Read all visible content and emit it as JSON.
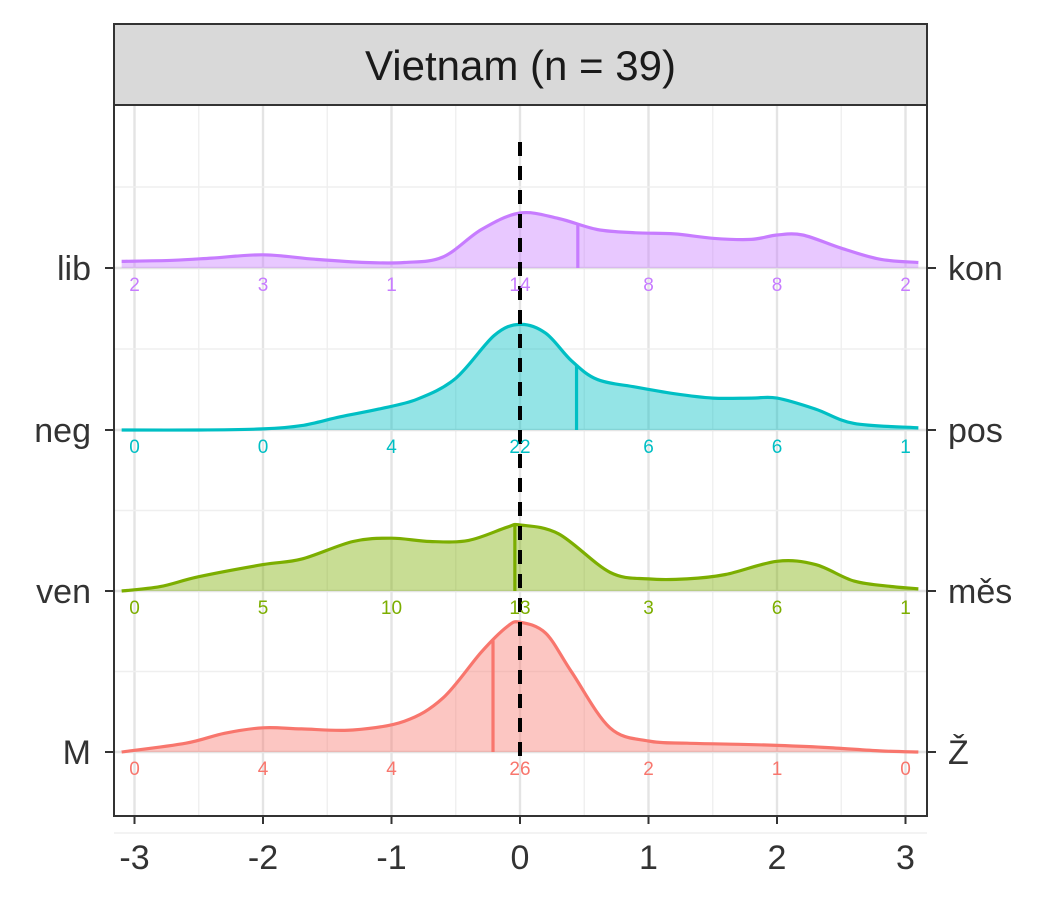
{
  "chart_data": {
    "type": "density-ridgeline",
    "facet_title": "Vietnam (n = 39)",
    "x_ticks": [
      -3,
      -2,
      -1,
      0,
      1,
      2,
      3
    ],
    "x_tick_labels": [
      "-3",
      "-2",
      "-1",
      "0",
      "1",
      "2",
      "3"
    ],
    "xlim": [
      -3.1,
      3.1
    ],
    "reference_line_x": 0,
    "grid": true,
    "rows": [
      {
        "left_label": "lib",
        "right_label": "kon",
        "color": "#C77CFF",
        "mean": 0.45,
        "counts": [
          2,
          3,
          1,
          14,
          8,
          8,
          2
        ],
        "count_labels": [
          "2",
          "3",
          "1",
          "14",
          "8",
          "8",
          "2"
        ],
        "density_x": [
          -3.1,
          -2.7,
          -2.4,
          -2.0,
          -1.6,
          -1.2,
          -0.9,
          -0.6,
          -0.3,
          0.0,
          0.3,
          0.6,
          0.9,
          1.2,
          1.5,
          1.8,
          2.0,
          2.2,
          2.5,
          2.8,
          3.1
        ],
        "density_y": [
          0.06,
          0.07,
          0.09,
          0.12,
          0.08,
          0.05,
          0.05,
          0.1,
          0.35,
          0.5,
          0.45,
          0.35,
          0.32,
          0.31,
          0.27,
          0.26,
          0.3,
          0.3,
          0.18,
          0.08,
          0.05
        ]
      },
      {
        "left_label": "neg",
        "right_label": "pos",
        "color": "#00BFC4",
        "mean": 0.44,
        "counts": [
          0,
          0,
          4,
          22,
          6,
          6,
          1
        ],
        "count_labels": [
          "0",
          "0",
          "4",
          "22",
          "6",
          "6",
          "1"
        ],
        "density_x": [
          -3.1,
          -2.5,
          -2.0,
          -1.7,
          -1.4,
          -1.1,
          -0.8,
          -0.5,
          -0.2,
          0.0,
          0.2,
          0.4,
          0.6,
          0.9,
          1.2,
          1.5,
          1.8,
          2.0,
          2.3,
          2.6,
          3.1
        ],
        "density_y": [
          0.0,
          0.0,
          0.01,
          0.04,
          0.12,
          0.19,
          0.28,
          0.47,
          0.86,
          0.96,
          0.88,
          0.63,
          0.46,
          0.39,
          0.33,
          0.29,
          0.29,
          0.29,
          0.19,
          0.06,
          0.02
        ]
      },
      {
        "left_label": "ven",
        "right_label": "měs",
        "color": "#7CAE00",
        "mean": -0.04,
        "counts": [
          0,
          5,
          10,
          13,
          3,
          6,
          1
        ],
        "count_labels": [
          "0",
          "5",
          "10",
          "13",
          "3",
          "6",
          "1"
        ],
        "density_x": [
          -3.1,
          -2.8,
          -2.5,
          -2.0,
          -1.7,
          -1.3,
          -1.0,
          -0.7,
          -0.4,
          -0.1,
          0.0,
          0.3,
          0.7,
          1.0,
          1.3,
          1.6,
          2.0,
          2.3,
          2.6,
          2.9,
          3.1
        ],
        "density_y": [
          0.0,
          0.04,
          0.13,
          0.24,
          0.29,
          0.45,
          0.48,
          0.45,
          0.46,
          0.58,
          0.6,
          0.52,
          0.17,
          0.11,
          0.11,
          0.15,
          0.27,
          0.24,
          0.09,
          0.04,
          0.02
        ]
      },
      {
        "left_label": "M",
        "right_label": "Ž",
        "color": "#F8766D",
        "mean": -0.21,
        "counts": [
          0,
          4,
          4,
          26,
          2,
          1,
          0
        ],
        "count_labels": [
          "0",
          "4",
          "4",
          "26",
          "2",
          "1",
          "0"
        ],
        "density_x": [
          -3.1,
          -2.6,
          -2.3,
          -2.0,
          -1.7,
          -1.3,
          -0.9,
          -0.6,
          -0.3,
          -0.1,
          0.0,
          0.2,
          0.4,
          0.7,
          1.0,
          1.3,
          1.7,
          2.0,
          2.4,
          2.8,
          3.1
        ],
        "density_y": [
          0.0,
          0.08,
          0.17,
          0.22,
          0.21,
          0.2,
          0.28,
          0.49,
          0.91,
          1.14,
          1.18,
          1.08,
          0.73,
          0.22,
          0.1,
          0.08,
          0.07,
          0.06,
          0.04,
          0.01,
          0.0
        ]
      }
    ]
  }
}
